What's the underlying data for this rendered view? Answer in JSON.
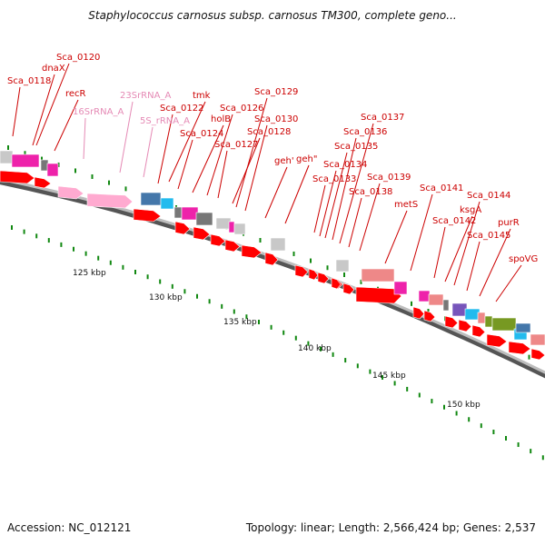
{
  "title": "Staphylococcus carnosus subsp. carnosus TM300, complete geno...",
  "footer": {
    "accession": "Accession: NC_012121",
    "summary": "Topology: linear; Length: 2,566,424 bp; Genes: 2,537"
  },
  "colors": {
    "label": "#cc0000",
    "rna_label": "#e58ab5",
    "cds": "#ff0000",
    "rna": "#ffaad0",
    "magenta": "#ee22aa",
    "cyan": "#22bbee",
    "steelblue": "#4477aa",
    "gray": "#777777",
    "lightgray": "#c8c8c8",
    "salmon": "#ee8888",
    "olive": "#779922",
    "purple": "#7755bb",
    "tick": "#118811"
  },
  "ticks": [
    {
      "label": "125 kbp"
    },
    {
      "label": "130 kbp"
    },
    {
      "label": "135 kbp"
    },
    {
      "label": "140 kbp"
    },
    {
      "label": "145 kbp"
    },
    {
      "label": "150 kbp"
    }
  ],
  "gene_labels": [
    {
      "text": "Sca_0118",
      "kind": "cds"
    },
    {
      "text": "Sca_0120",
      "kind": "cds"
    },
    {
      "text": "dnaX",
      "kind": "cds"
    },
    {
      "text": "recR",
      "kind": "cds"
    },
    {
      "text": "16SrRNA_A",
      "kind": "rna"
    },
    {
      "text": "23SrRNA_A",
      "kind": "rna"
    },
    {
      "text": "5S_rRNA_A",
      "kind": "rna"
    },
    {
      "text": "tmk",
      "kind": "cds"
    },
    {
      "text": "Sca_0122",
      "kind": "cds"
    },
    {
      "text": "Sca_0124",
      "kind": "cds"
    },
    {
      "text": "holB",
      "kind": "cds"
    },
    {
      "text": "Sca_0126",
      "kind": "cds"
    },
    {
      "text": "Sca_0127",
      "kind": "cds"
    },
    {
      "text": "Sca_0128",
      "kind": "cds"
    },
    {
      "text": "Sca_0129",
      "kind": "cds"
    },
    {
      "text": "Sca_0130",
      "kind": "cds"
    },
    {
      "text": "geh'",
      "kind": "cds"
    },
    {
      "text": "geh\"",
      "kind": "cds"
    },
    {
      "text": "Sca_0133",
      "kind": "cds"
    },
    {
      "text": "Sca_0134",
      "kind": "cds"
    },
    {
      "text": "Sca_0135",
      "kind": "cds"
    },
    {
      "text": "Sca_0136",
      "kind": "cds"
    },
    {
      "text": "Sca_0137",
      "kind": "cds"
    },
    {
      "text": "Sca_0138",
      "kind": "cds"
    },
    {
      "text": "Sca_0139",
      "kind": "cds"
    },
    {
      "text": "metS",
      "kind": "cds"
    },
    {
      "text": "Sca_0141",
      "kind": "cds"
    },
    {
      "text": "Sca_0142",
      "kind": "cds"
    },
    {
      "text": "ksgA",
      "kind": "cds"
    },
    {
      "text": "Sca_0144",
      "kind": "cds"
    },
    {
      "text": "Sca_0145",
      "kind": "cds"
    },
    {
      "text": "purR",
      "kind": "cds"
    },
    {
      "text": "spoVG",
      "kind": "cds"
    }
  ]
}
